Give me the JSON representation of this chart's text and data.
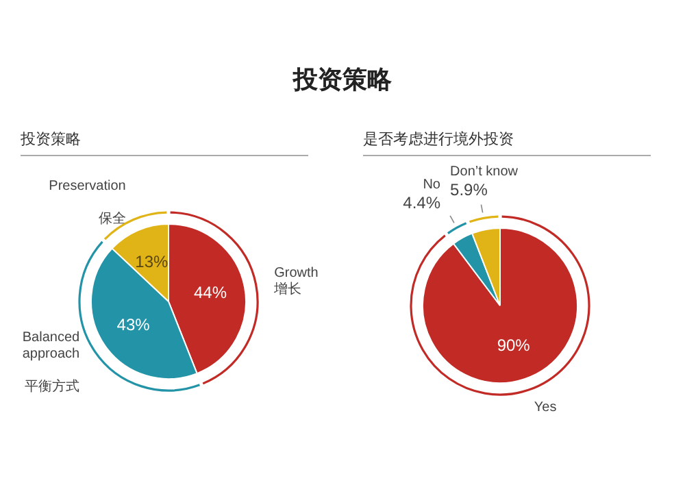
{
  "chart_data": [
    {
      "type": "other",
      "title": "投资策略"
    },
    {
      "type": "pie",
      "title": "投资策略",
      "categories": [
        "Growth\n增长",
        "Balanced\napproach\n\n平衡方式",
        "Preservation\n\n保全"
      ],
      "values": [
        44,
        43,
        13
      ],
      "colors": [
        "#c22a26",
        "#2394a8",
        "#e0b417"
      ],
      "value_labels": [
        "44%",
        "43%",
        "13%"
      ]
    },
    {
      "type": "pie",
      "title": "是否考虑进行境外投资",
      "categories": [
        "Yes",
        "No",
        "Don’t know"
      ],
      "values": [
        90,
        4.4,
        5.9
      ],
      "colors": [
        "#c22a26",
        "#2394a8",
        "#e0b417"
      ],
      "value_labels": [
        "90%",
        "4.4%",
        "5.9%"
      ]
    }
  ]
}
